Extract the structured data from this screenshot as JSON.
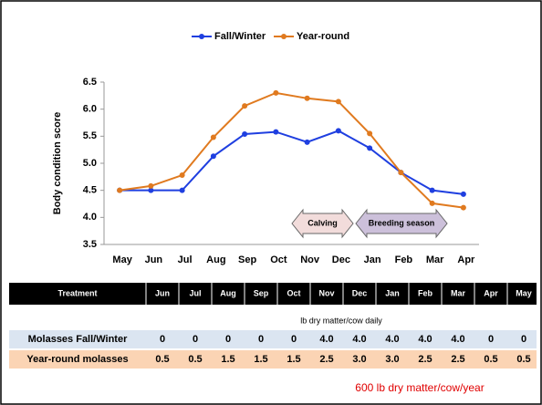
{
  "chart_data": {
    "type": "line",
    "ylabel": "Body condition score",
    "categories": [
      "May",
      "Jun",
      "Jul",
      "Aug",
      "Sep",
      "Oct",
      "Nov",
      "Dec",
      "Jan",
      "Feb",
      "Mar",
      "Apr"
    ],
    "series": [
      {
        "name": "Fall/Winter",
        "color": "#1f3fe0",
        "values": [
          4.5,
          4.5,
          4.5,
          5.13,
          5.54,
          5.58,
          5.39,
          5.6,
          5.28,
          4.83,
          4.5,
          4.43
        ]
      },
      {
        "name": "Year-round",
        "color": "#e07a1f",
        "values": [
          4.5,
          4.58,
          4.78,
          5.48,
          6.06,
          6.3,
          6.2,
          6.14,
          5.55,
          4.83,
          4.26,
          4.18
        ]
      }
    ],
    "ylim": [
      3.5,
      6.5
    ],
    "yticks": [
      3.5,
      {
        "value": 4,
        "label": "4.0"
      },
      4.5,
      {
        "value": 5,
        "label": "5.0"
      },
      5.5,
      {
        "value": 6,
        "label": "6.0"
      },
      6.5
    ],
    "legend": "top",
    "annotations": [
      "Calving",
      "Breeding season"
    ]
  },
  "table": {
    "header": [
      "Treatment",
      "Jun",
      "Jul",
      "Aug",
      "Sep",
      "Oct",
      "Nov",
      "Dec",
      "Jan",
      "Feb",
      "Mar",
      "Apr",
      "May"
    ],
    "unit_note": "lb dry matter/cow daily",
    "rows": [
      [
        "Molasses Fall/Winter",
        "0",
        "0",
        "0",
        "0",
        "0",
        "4.0",
        "4.0",
        "4.0",
        "4.0",
        "4.0",
        "0",
        "0"
      ],
      [
        "Year-round molasses",
        "0.5",
        "0.5",
        "1.5",
        "1.5",
        "1.5",
        "2.5",
        "3.0",
        "3.0",
        "2.5",
        "2.5",
        "0.5",
        "0.5"
      ]
    ],
    "footnote": "600 lb dry matter/cow/year"
  }
}
